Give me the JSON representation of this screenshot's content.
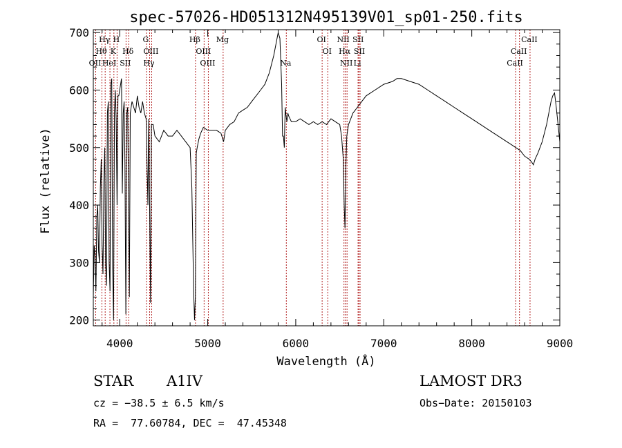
{
  "chart_data": {
    "type": "line",
    "title": "spec-57026-HD051312N495139V01_sp01-250.fits",
    "xlabel": "Wavelength (Å)",
    "ylabel": "Flux (relative)",
    "xlim": [
      3700,
      9000
    ],
    "ylim": [
      190,
      705
    ],
    "xticks": [
      4000,
      5000,
      6000,
      7000,
      8000,
      9000
    ],
    "yticks": [
      200,
      300,
      400,
      500,
      600,
      700
    ],
    "grid": false,
    "series": [
      {
        "x": [
          3700,
          3710,
          3720,
          3730,
          3740,
          3750,
          3760,
          3770,
          3780,
          3790,
          3800,
          3810,
          3820,
          3830,
          3840,
          3850,
          3860,
          3870,
          3880,
          3890,
          3900,
          3910,
          3920,
          3930,
          3940,
          3950,
          3960,
          3970,
          3980,
          3990,
          4000,
          4010,
          4020,
          4030,
          4040,
          4050,
          4060,
          4070,
          4080,
          4090,
          4100,
          4110,
          4120,
          4140,
          4160,
          4180,
          4200,
          4220,
          4240,
          4260,
          4280,
          4300,
          4320,
          4330,
          4340,
          4350,
          4360,
          4380,
          4400,
          4450,
          4500,
          4550,
          4600,
          4650,
          4700,
          4750,
          4800,
          4820,
          4840,
          4850,
          4860,
          4870,
          4880,
          4900,
          4920,
          4950,
          5000,
          5050,
          5100,
          5150,
          5180,
          5200,
          5250,
          5300,
          5350,
          5400,
          5450,
          5500,
          5550,
          5600,
          5650,
          5700,
          5750,
          5800,
          5820,
          5840,
          5850,
          5860,
          5870,
          5880,
          5890,
          5900,
          5910,
          5920,
          5950,
          6000,
          6050,
          6100,
          6150,
          6200,
          6250,
          6300,
          6350,
          6400,
          6450,
          6500,
          6520,
          6540,
          6550,
          6560,
          6570,
          6580,
          6600,
          6650,
          6700,
          6750,
          6800,
          6900,
          7000,
          7100,
          7150,
          7200,
          7300,
          7400,
          7500,
          7600,
          7700,
          7800,
          7900,
          8000,
          8100,
          8200,
          8300,
          8400,
          8450,
          8500,
          8550,
          8600,
          8650,
          8680,
          8700,
          8720,
          8750,
          8800,
          8850,
          8900,
          8920,
          8940,
          8960,
          8980,
          9000
        ],
        "y": [
          240,
          330,
          310,
          250,
          380,
          400,
          320,
          300,
          430,
          480,
          330,
          280,
          440,
          500,
          300,
          260,
          560,
          580,
          300,
          250,
          610,
          620,
          290,
          200,
          560,
          600,
          550,
          400,
          590,
          590,
          600,
          610,
          620,
          420,
          560,
          580,
          470,
          210,
          560,
          570,
          430,
          240,
          560,
          580,
          570,
          560,
          590,
          570,
          560,
          580,
          560,
          550,
          400,
          550,
          400,
          230,
          540,
          540,
          520,
          510,
          530,
          520,
          520,
          530,
          520,
          510,
          500,
          430,
          250,
          200,
          240,
          490,
          500,
          515,
          525,
          535,
          530,
          530,
          530,
          525,
          510,
          530,
          540,
          545,
          560,
          565,
          570,
          580,
          590,
          600,
          610,
          630,
          660,
          700,
          690,
          610,
          520,
          520,
          500,
          570,
          555,
          545,
          560,
          555,
          545,
          545,
          550,
          545,
          540,
          545,
          540,
          545,
          540,
          550,
          545,
          540,
          520,
          480,
          400,
          360,
          470,
          520,
          540,
          560,
          570,
          580,
          590,
          600,
          610,
          615,
          620,
          620,
          615,
          610,
          600,
          590,
          580,
          570,
          560,
          550,
          540,
          530,
          520,
          510,
          505,
          500,
          495,
          485,
          480,
          475,
          470,
          480,
          490,
          510,
          540,
          580,
          590,
          595,
          570,
          540,
          510
        ]
      }
    ],
    "lines": {
      "row1": [
        {
          "label": "Hγ",
          "wl": 3835
        },
        {
          "label": "H",
          "wl": 3970
        },
        {
          "label": "G",
          "wl": 4304
        },
        {
          "label": "Hβ",
          "wl": 4861
        },
        {
          "label": "Mg",
          "wl": 5175
        },
        {
          "label": "OI",
          "wl": 6300
        },
        {
          "label": "NII",
          "wl": 6548
        },
        {
          "label": "SII",
          "wl": 6717
        },
        {
          "label": "CaII",
          "wl": 8662
        }
      ],
      "row2": [
        {
          "label": "Hθ",
          "wl": 3798
        },
        {
          "label": "K",
          "wl": 3934
        },
        {
          "label": "Hδ",
          "wl": 4102
        },
        {
          "label": "OIII",
          "wl": 4363
        },
        {
          "label": "OIII",
          "wl": 4959
        },
        {
          "label": "OI",
          "wl": 6364
        },
        {
          "label": "Hα",
          "wl": 6563
        },
        {
          "label": "SII",
          "wl": 6731
        },
        {
          "label": "CaII",
          "wl": 8542
        }
      ],
      "row3": [
        {
          "label": "OII",
          "wl": 3727
        },
        {
          "label": "HeI",
          "wl": 3889
        },
        {
          "label": "SII",
          "wl": 4072
        },
        {
          "label": "Hγ",
          "wl": 4340
        },
        {
          "label": "OIII",
          "wl": 5007
        },
        {
          "label": "Na",
          "wl": 5893
        },
        {
          "label": "NII",
          "wl": 6583
        },
        {
          "label": "Li",
          "wl": 6708
        },
        {
          "label": "CaII",
          "wl": 8498
        }
      ]
    },
    "line_color": "#b22222"
  },
  "info": {
    "object_class": "STAR",
    "subclass": "A1IV",
    "survey": "LAMOST DR3",
    "cz": "cz = −38.5 ± 6.5 km/s",
    "obs_date": "Obs−Date: 20150103",
    "radec": "RA =  77.60784, DEC =  47.45348"
  }
}
